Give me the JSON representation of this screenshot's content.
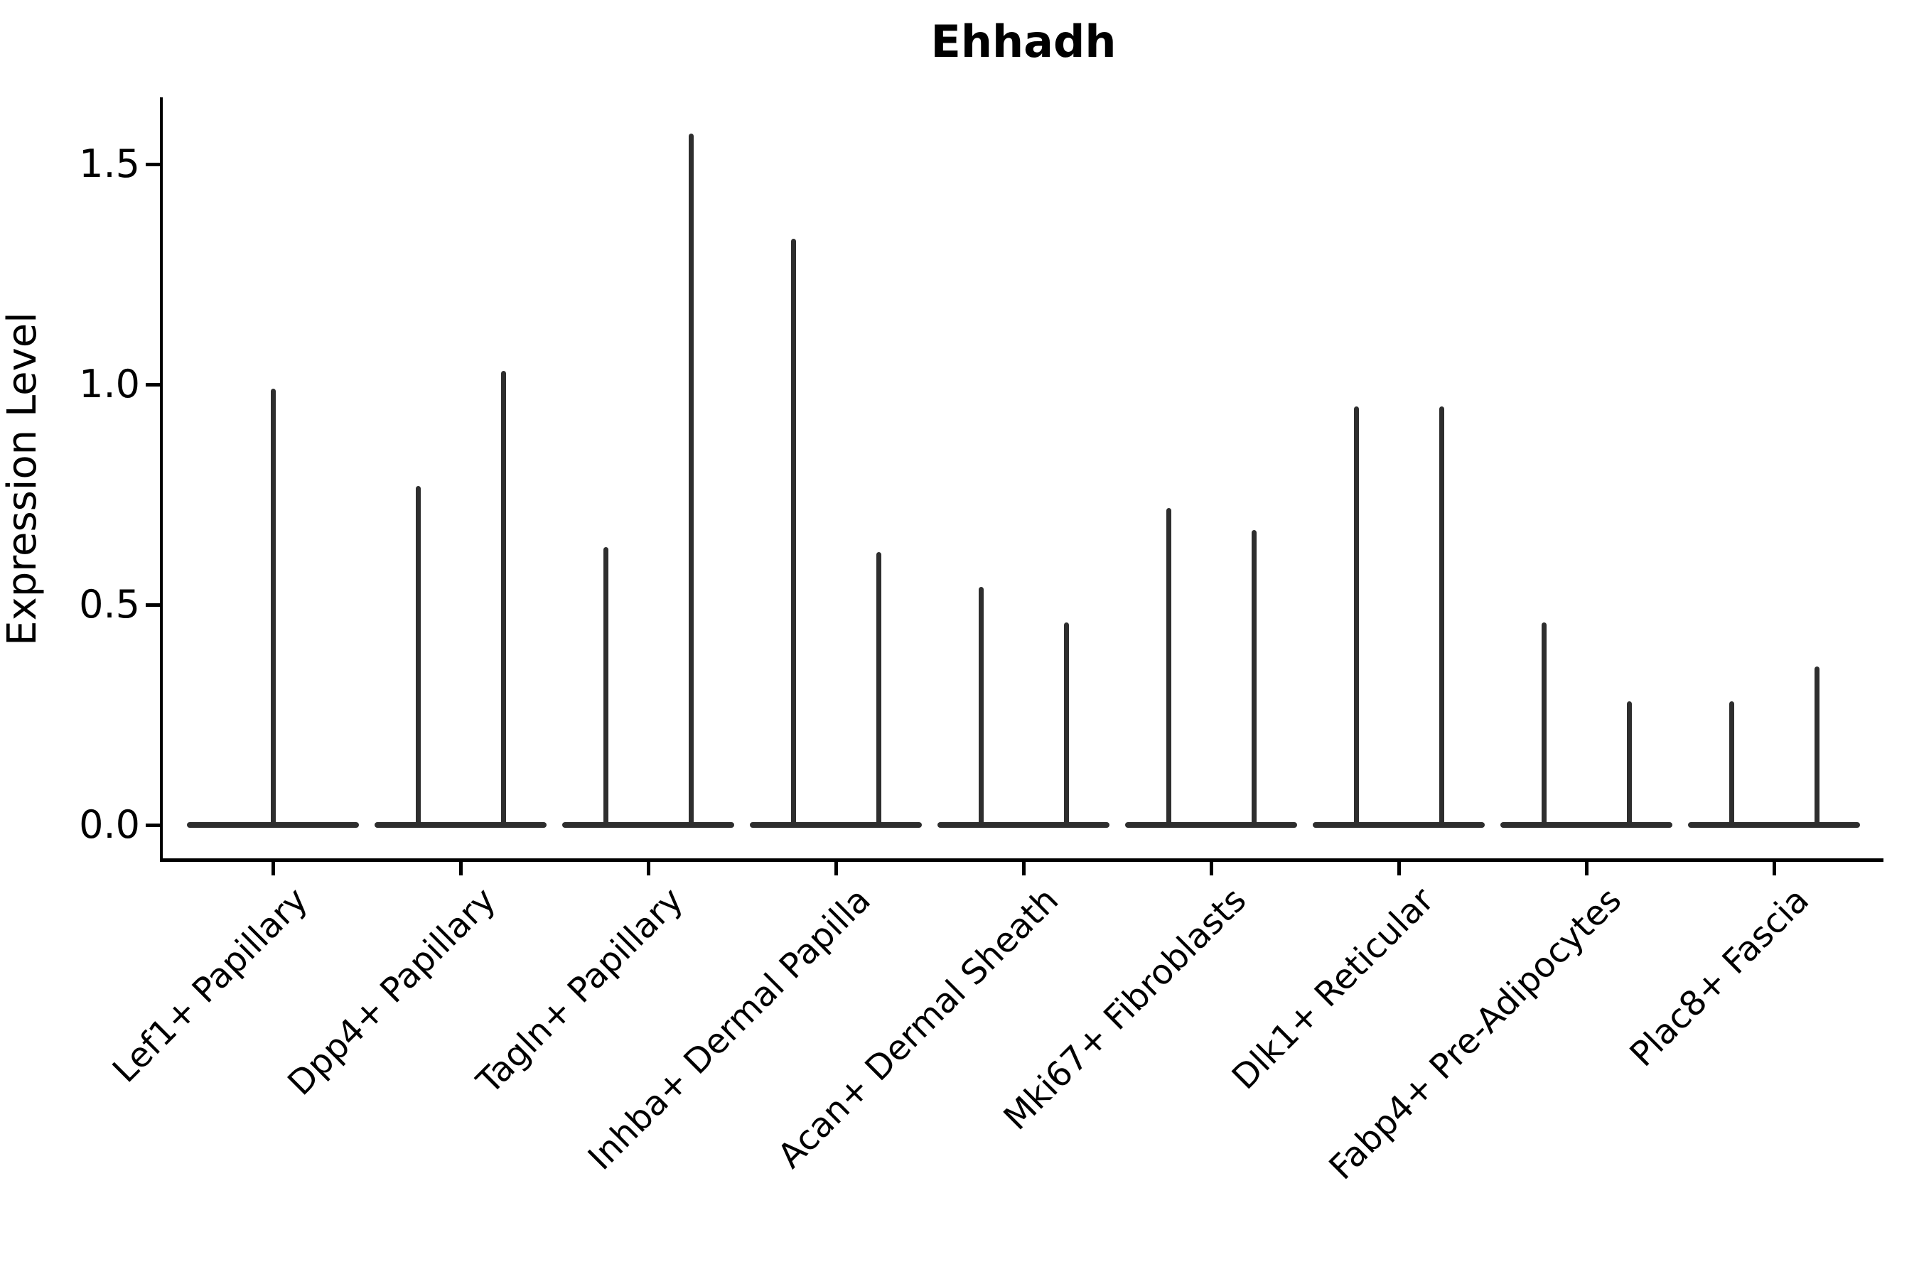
{
  "title": "Ehhadh",
  "y_axis": {
    "label": "Expression Level",
    "tick_labels": [
      "0.0",
      "0.5",
      "1.0",
      "1.5"
    ],
    "tick_values": [
      0.0,
      0.5,
      1.0,
      1.5
    ]
  },
  "x_axis": {
    "tick_label_rotation_deg": 45,
    "categories": [
      "Lef1+ Papillary",
      "Dpp4+ Papillary",
      "Tagln+ Papillary",
      "Inhba+ Dermal Papilla",
      "Acan+ Dermal Sheath",
      "Mki67+ Fibroblasts",
      "Dlk1+ Reticular",
      "Fabp4+ Pre-Adipocytes",
      "Plac8+ Fascia"
    ]
  },
  "colors": {
    "violin_stroke": "#2e2e2e",
    "axis": "#000000",
    "text": "#000000",
    "background": "#ffffff"
  },
  "chart_data": {
    "type": "violin",
    "title": "Ehhadh",
    "xlabel": "",
    "ylabel": "Expression Level",
    "ylim": [
      -0.08,
      1.65
    ],
    "yticks": [
      0.0,
      0.5,
      1.0,
      1.5
    ],
    "grid": false,
    "legend": "none",
    "description": "Seurat-style stacked violin plot of Ehhadh expression; each cell-type category shows extremely narrow violins (most cells at 0) rendered as a flat base at 0 with thin spikes reaching each violin's maximum expression value. Categories 2-9 contain two dodged violins (left/right); category 1 has a single centered violin.",
    "categories": [
      "Lef1+ Papillary",
      "Dpp4+ Papillary",
      "Tagln+ Papillary",
      "Inhba+ Dermal Papilla",
      "Acan+ Dermal Sheath",
      "Mki67+ Fibroblasts",
      "Dlk1+ Reticular",
      "Fabp4+ Pre-Adipocytes",
      "Plac8+ Fascia"
    ],
    "violins": [
      {
        "category": "Lef1+ Papillary",
        "spikes": [
          {
            "position": "center",
            "max": 0.99
          }
        ]
      },
      {
        "category": "Dpp4+ Papillary",
        "spikes": [
          {
            "position": "left",
            "max": 0.77
          },
          {
            "position": "right",
            "max": 1.03
          }
        ]
      },
      {
        "category": "Tagln+ Papillary",
        "spikes": [
          {
            "position": "left",
            "max": 0.63
          },
          {
            "position": "right",
            "max": 1.57
          }
        ]
      },
      {
        "category": "Inhba+ Dermal Papilla",
        "spikes": [
          {
            "position": "left",
            "max": 1.33
          },
          {
            "position": "right",
            "max": 0.62
          }
        ]
      },
      {
        "category": "Acan+ Dermal Sheath",
        "spikes": [
          {
            "position": "left",
            "max": 0.54
          },
          {
            "position": "right",
            "max": 0.46
          }
        ]
      },
      {
        "category": "Mki67+ Fibroblasts",
        "spikes": [
          {
            "position": "left",
            "max": 0.72
          },
          {
            "position": "right",
            "max": 0.67
          }
        ]
      },
      {
        "category": "Dlk1+ Reticular",
        "spikes": [
          {
            "position": "left",
            "max": 0.95
          },
          {
            "position": "right",
            "max": 0.95
          }
        ]
      },
      {
        "category": "Fabp4+ Pre-Adipocytes",
        "spikes": [
          {
            "position": "left",
            "max": 0.46
          },
          {
            "position": "right",
            "max": 0.28
          }
        ]
      },
      {
        "category": "Plac8+ Fascia",
        "spikes": [
          {
            "position": "left",
            "max": 0.28
          },
          {
            "position": "right",
            "max": 0.36
          }
        ]
      }
    ]
  }
}
